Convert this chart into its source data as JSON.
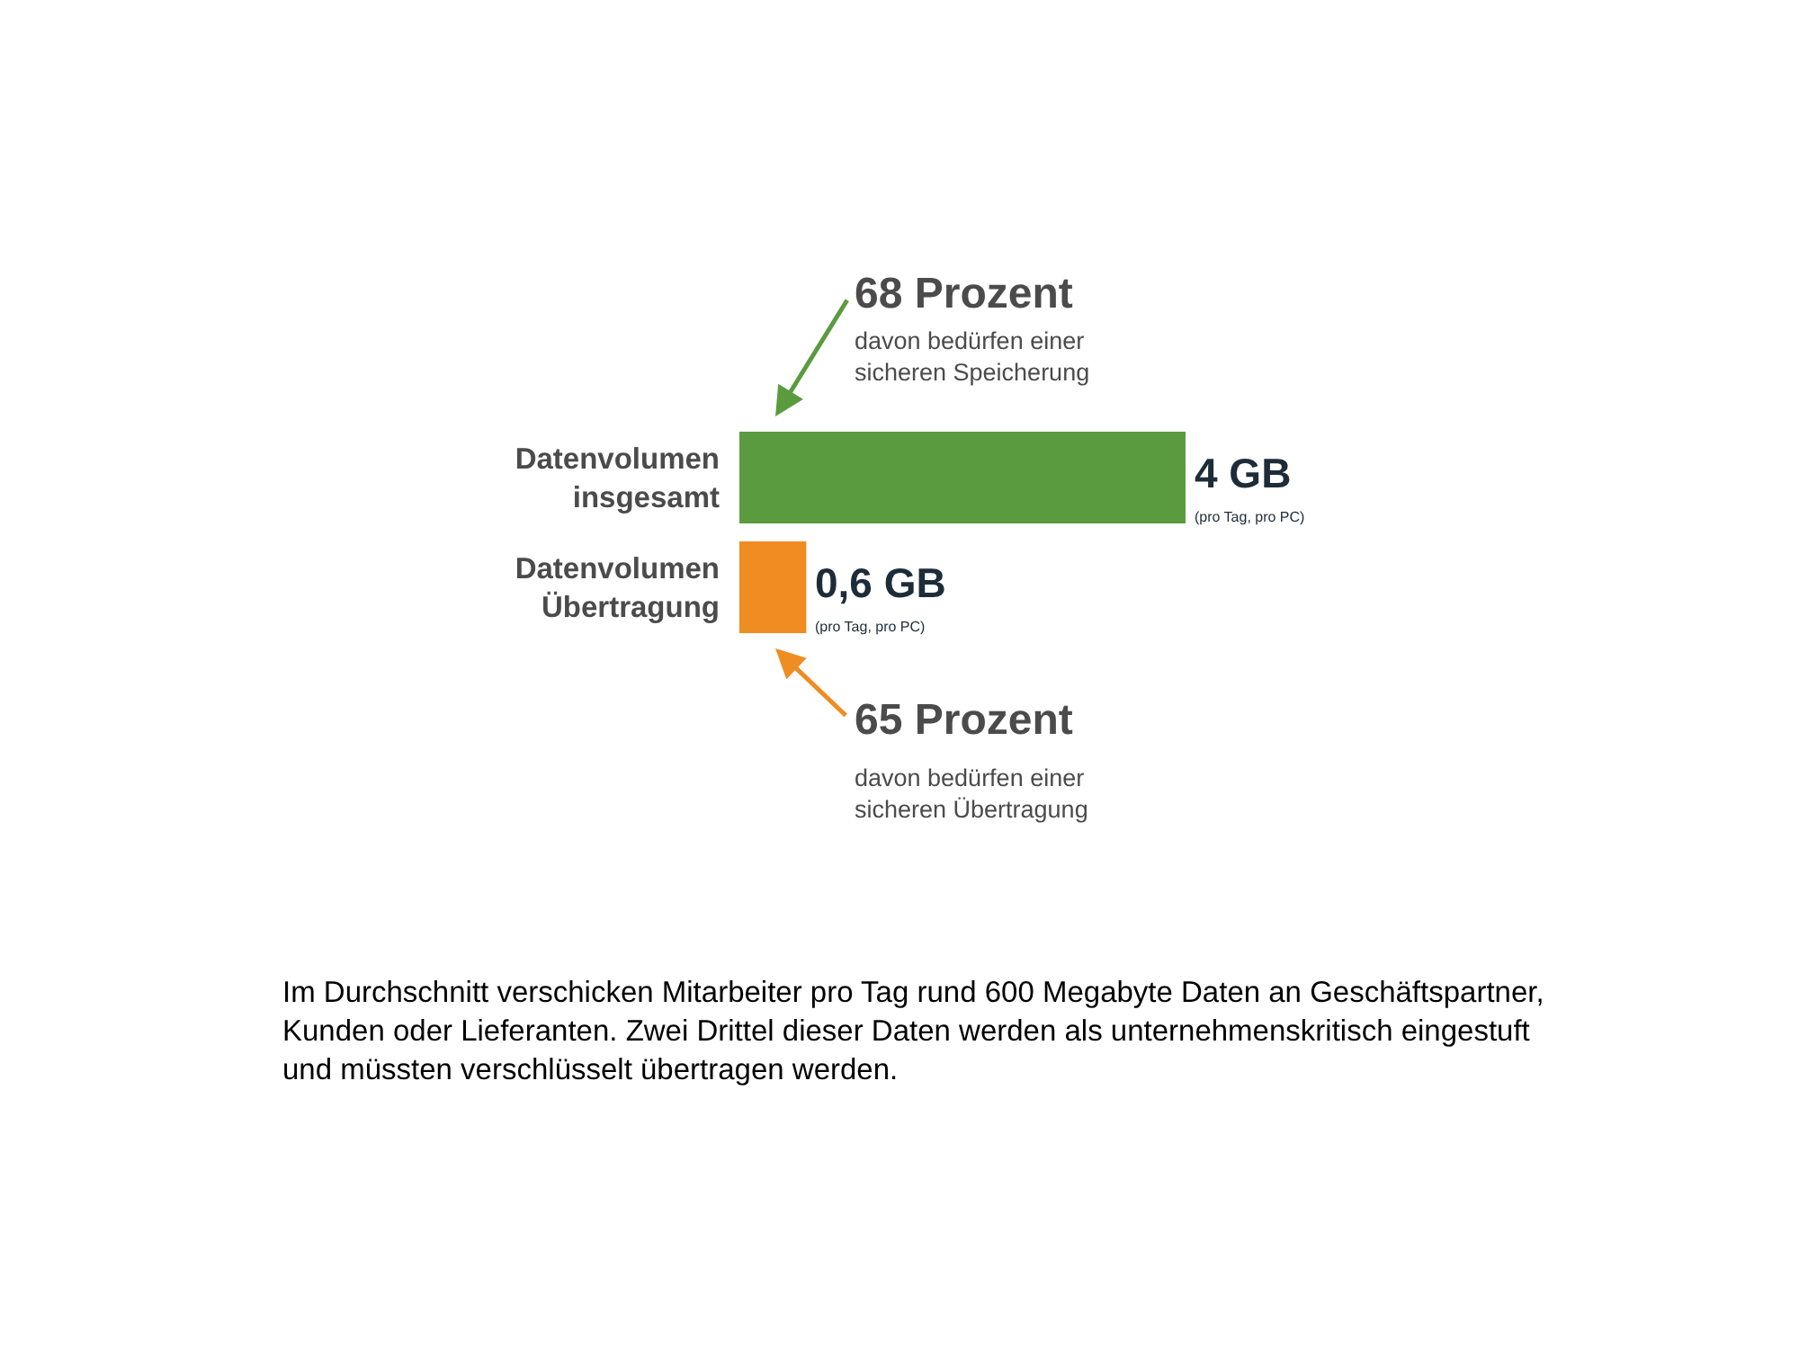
{
  "chart_data": {
    "type": "bar",
    "orientation": "horizontal",
    "categories": [
      "Datenvolumen insgesamt",
      "Datenvolumen Übertragung"
    ],
    "values": [
      4,
      0.6
    ],
    "colors": [
      "#5b9b3f",
      "#ef8c22"
    ],
    "value_labels": [
      "4 GB",
      "0,6 GB"
    ],
    "annotations": [
      "68 Prozent\ndavon bedürfen einer\nsicheren Speicherung",
      "65 Prozent\ndavon bedürfen einer\nsicheren Übertragung",
      {
        "text": "(pro Tag, pro PC)",
        "x": 4,
        "y": "Datenvolumen insgesamt"
      },
      {
        "text": "(pro Tag, pro PC)",
        "x": 0.6,
        "y": "Datenvolumen Übertragung"
      },
      "Im Durchschnitt verschicken Mitarbeiter pro Tag rund 600 Megabyte Daten an Geschäftspartner, Kunden oder Lieferanten. Zwei Drittel dieser Daten werden als unternehmenskritisch eingestuft und müssten verschlüsselt übertragen werden."
    ]
  }
}
